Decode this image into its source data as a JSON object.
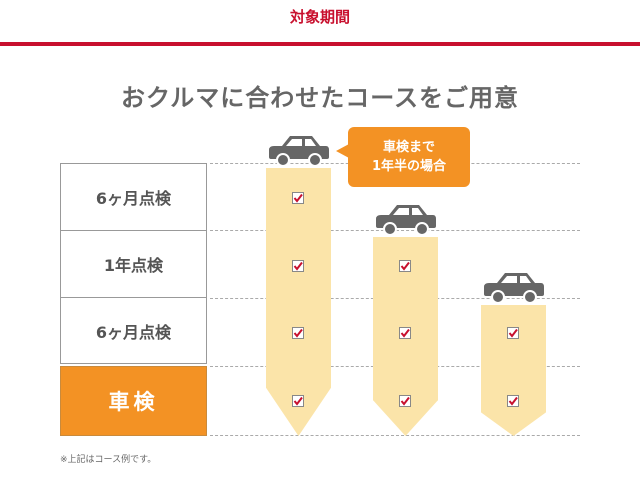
{
  "header": {
    "section_title": "対象期間",
    "accent_color": "#c8102e"
  },
  "title": "おクルマに合わせたコースをご用意",
  "rows": [
    {
      "label": "6ヶ月点検"
    },
    {
      "label": "1年点検"
    },
    {
      "label": "6ヶ月点検"
    },
    {
      "label": "車検",
      "highlight_color": "#f39224"
    }
  ],
  "columns": [
    {
      "icon": "car-icon",
      "checks": [
        true,
        true,
        true,
        true
      ]
    },
    {
      "icon": "car-icon",
      "checks": [
        false,
        true,
        true,
        true
      ]
    },
    {
      "icon": "car-icon",
      "checks": [
        false,
        false,
        true,
        true
      ]
    }
  ],
  "callout": {
    "line1": "車検まで",
    "line2": "1年半の場合"
  },
  "note": "※上記はコース例です。",
  "colors": {
    "bar": "#fbe4a9",
    "car": "#666666",
    "check": "#c8102e",
    "callout": "#f39224"
  }
}
